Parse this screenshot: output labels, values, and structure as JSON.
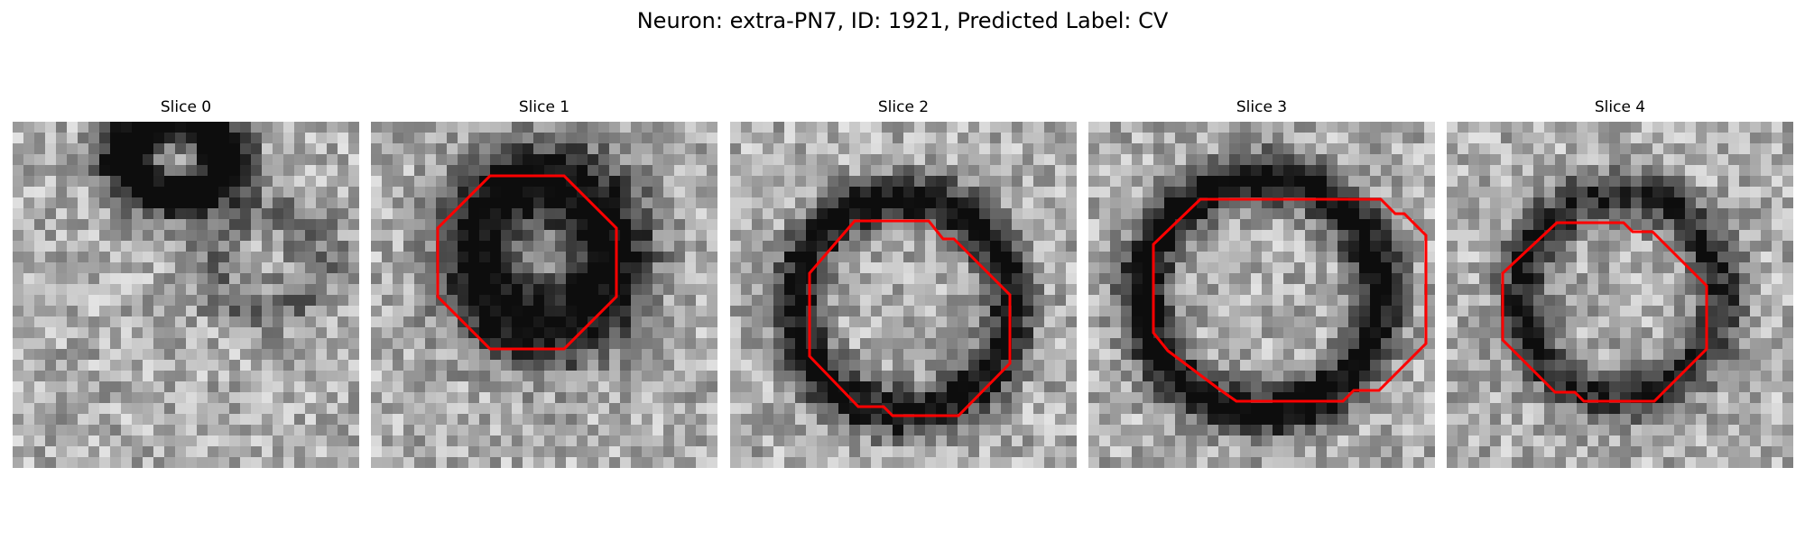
{
  "figure": {
    "title": "Neuron: extra-PN7, ID: 1921, Predicted Label: CV",
    "colormap": "grayscale",
    "contour_color": "#ff0000"
  },
  "slices": [
    {
      "title": "Slice 0",
      "has_contour": false
    },
    {
      "title": "Slice 1",
      "has_contour": true
    },
    {
      "title": "Slice 2",
      "has_contour": true
    },
    {
      "title": "Slice 3",
      "has_contour": true
    },
    {
      "title": "Slice 4",
      "has_contour": true
    }
  ]
}
